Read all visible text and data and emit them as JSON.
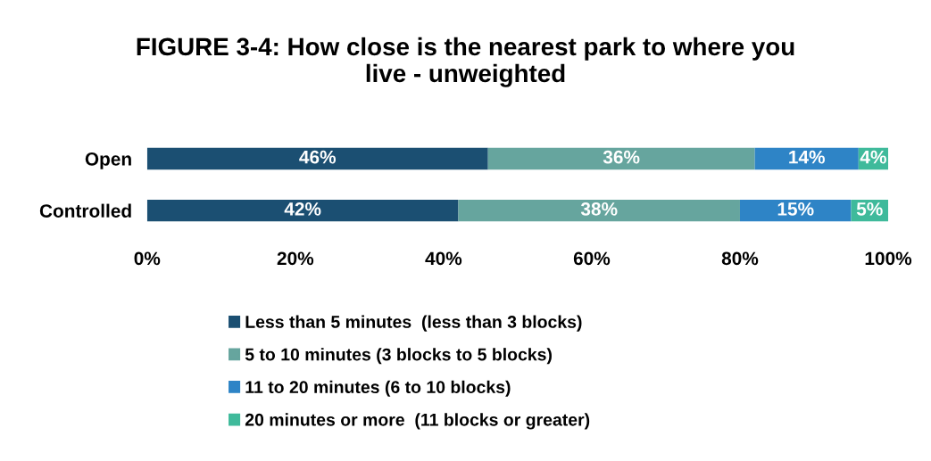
{
  "chart_data": {
    "type": "bar",
    "orientation": "horizontal",
    "stacked": true,
    "title": "FIGURE 3-4: How close is the nearest park to where you live - unweighted",
    "categories": [
      "Open",
      "Controlled"
    ],
    "series": [
      {
        "name": "Less than 5 minutes  (less than 3 blocks)",
        "color": "#1b4f72",
        "values": [
          46,
          42
        ],
        "value_labels": [
          "46%",
          "42%"
        ]
      },
      {
        "name": "5 to 10 minutes (3 blocks to 5 blocks)",
        "color": "#66a59e",
        "values": [
          36,
          38
        ],
        "value_labels": [
          "36%",
          "38%"
        ]
      },
      {
        "name": "11 to 20 minutes (6 to 10 blocks)",
        "color": "#2e84c6",
        "values": [
          14,
          15
        ],
        "value_labels": [
          "14%",
          "15%"
        ]
      },
      {
        "name": "20 minutes or more  (11 blocks or greater)",
        "color": "#3fba9b",
        "values": [
          4,
          5
        ],
        "value_labels": [
          "4%",
          "5%"
        ]
      }
    ],
    "xlim": [
      0,
      100
    ],
    "xticks": [
      {
        "value": 0,
        "label": "0%"
      },
      {
        "value": 20,
        "label": "20%"
      },
      {
        "value": 40,
        "label": "40%"
      },
      {
        "value": 60,
        "label": "60%"
      },
      {
        "value": 80,
        "label": "80%"
      },
      {
        "value": 100,
        "label": "100%"
      }
    ],
    "grid": false,
    "legend": "bottom"
  }
}
